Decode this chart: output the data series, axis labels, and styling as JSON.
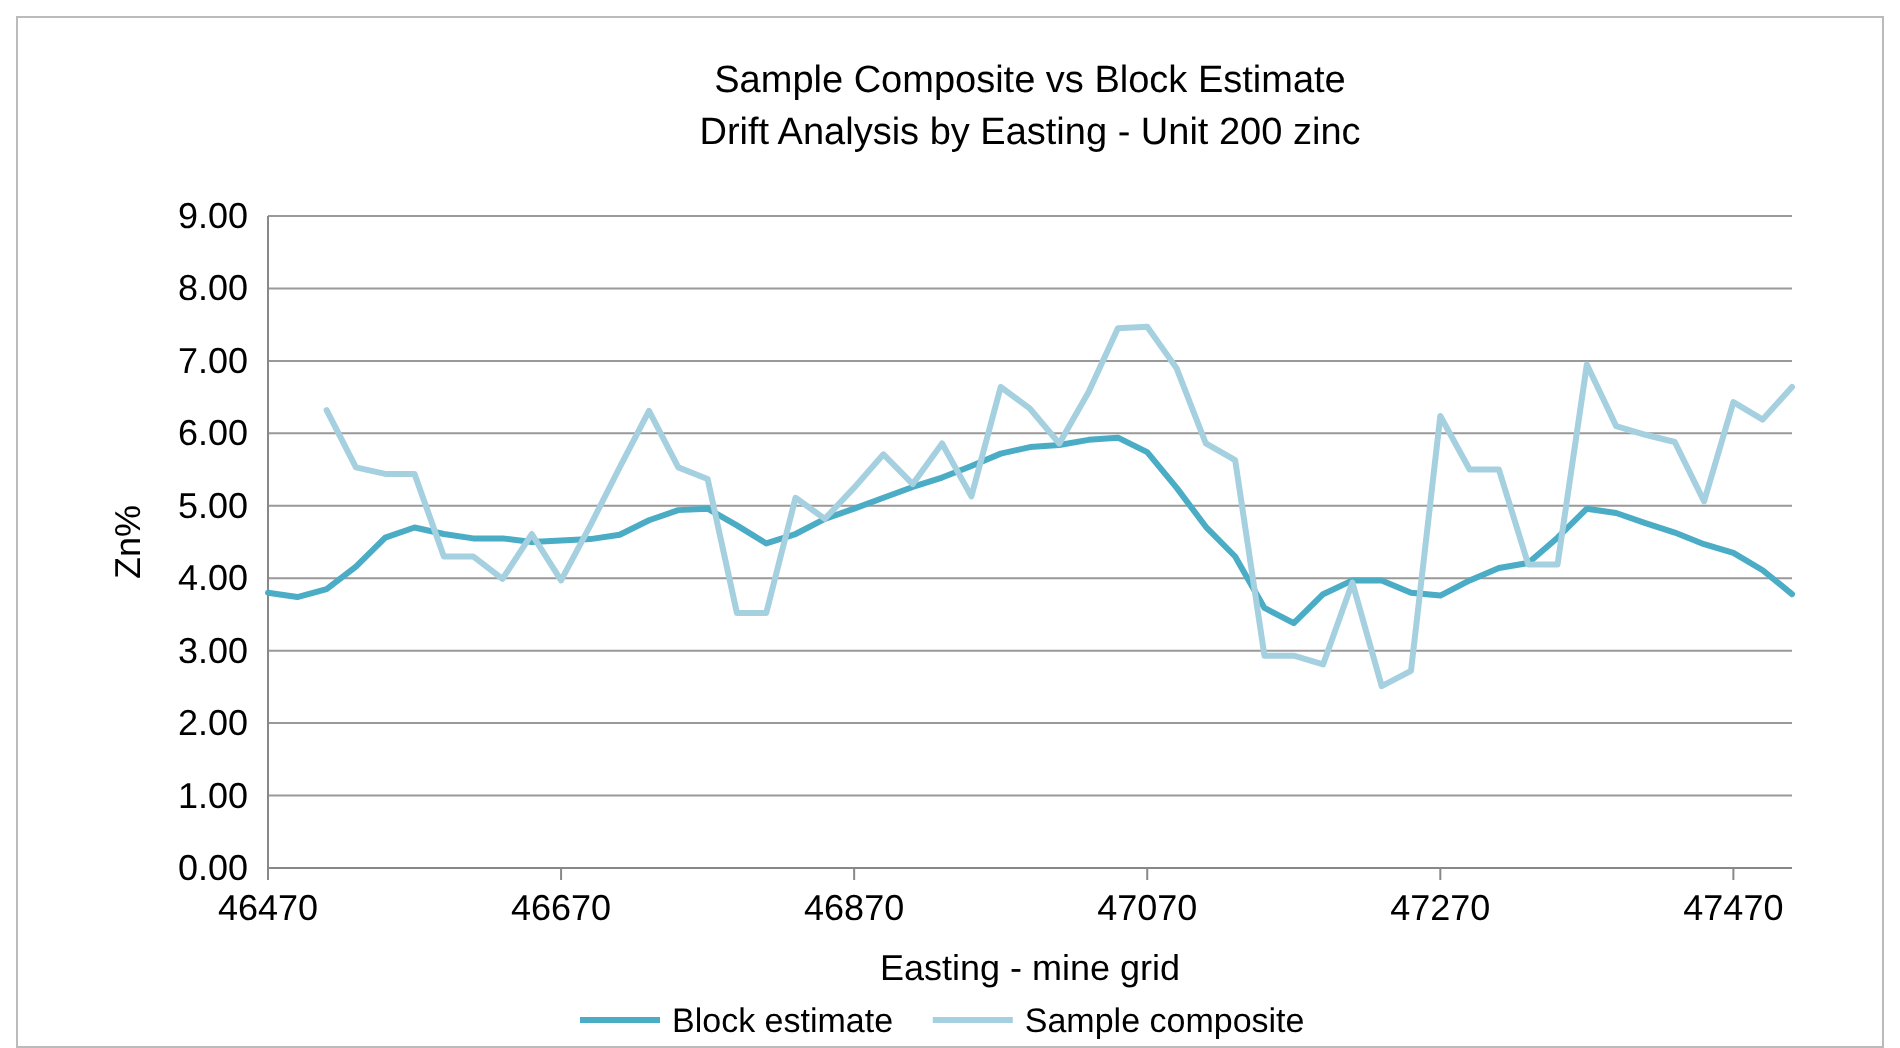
{
  "chart_data": {
    "type": "line",
    "title": "Sample Composite vs Block Estimate\nDrift Analysis by Easting - Unit 200 zinc",
    "xlabel": "Easting - mine grid",
    "ylabel": "Zn%",
    "x": [
      46470,
      46490,
      46510,
      46530,
      46550,
      46570,
      46590,
      46610,
      46630,
      46650,
      46670,
      46690,
      46710,
      46730,
      46750,
      46770,
      46790,
      46810,
      46830,
      46850,
      46870,
      46890,
      46910,
      46930,
      46950,
      46970,
      46990,
      47010,
      47030,
      47050,
      47070,
      47090,
      47110,
      47130,
      47150,
      47170,
      47190,
      47210,
      47230,
      47250,
      47270,
      47290,
      47310,
      47330,
      47350,
      47370,
      47390,
      47410,
      47430,
      47450,
      47470,
      47490,
      47510
    ],
    "series": [
      {
        "name": "Block estimate",
        "color": "#4bacc6",
        "values": [
          3.8,
          3.74,
          3.85,
          4.16,
          4.56,
          4.7,
          4.61,
          4.55,
          4.55,
          4.5,
          4.52,
          4.54,
          4.6,
          4.8,
          4.94,
          4.96,
          4.73,
          4.48,
          4.61,
          4.82,
          4.96,
          5.11,
          5.26,
          5.39,
          5.55,
          5.72,
          5.81,
          5.84,
          5.91,
          5.94,
          5.74,
          5.25,
          4.71,
          4.3,
          3.59,
          3.38,
          3.78,
          3.97,
          3.97,
          3.8,
          3.76,
          3.97,
          4.14,
          4.21,
          4.56,
          4.96,
          4.9,
          4.76,
          4.63,
          4.47,
          4.35,
          4.11,
          3.78
        ]
      },
      {
        "name": "Sample composite",
        "color": "#a5d0df",
        "values": [
          null,
          null,
          6.32,
          5.53,
          5.44,
          5.44,
          4.3,
          4.3,
          3.99,
          4.61,
          3.97,
          4.73,
          5.53,
          6.31,
          5.53,
          5.37,
          3.52,
          3.52,
          5.11,
          4.82,
          5.25,
          5.71,
          5.3,
          5.86,
          5.13,
          6.64,
          6.34,
          5.86,
          6.57,
          7.45,
          7.47,
          6.9,
          5.86,
          5.63,
          2.93,
          2.93,
          2.81,
          3.94,
          2.51,
          2.72,
          6.24,
          5.5,
          5.5,
          4.19,
          4.19,
          6.95,
          6.1,
          5.98,
          5.88,
          5.06,
          6.43,
          6.19,
          6.64
        ]
      }
    ],
    "xlim": [
      46470,
      47510
    ],
    "xticks": [
      46470,
      46670,
      46870,
      47070,
      47270,
      47470
    ],
    "ylim": [
      0,
      9
    ],
    "yticks": [
      {
        "value": 0,
        "label": "0.00"
      },
      {
        "value": 1,
        "label": "1.00"
      },
      {
        "value": 2,
        "label": "2.00"
      },
      {
        "value": 3,
        "label": "3.00"
      },
      {
        "value": 4,
        "label": "4.00"
      },
      {
        "value": 5,
        "label": "5.00"
      },
      {
        "value": 6,
        "label": "6.00"
      },
      {
        "value": 7,
        "label": "7.00"
      },
      {
        "value": 8,
        "label": "8.00"
      },
      {
        "value": 9,
        "label": "9.00"
      }
    ],
    "grid": "y",
    "legend": "bottom",
    "marker": "none",
    "line_style": "solid"
  }
}
